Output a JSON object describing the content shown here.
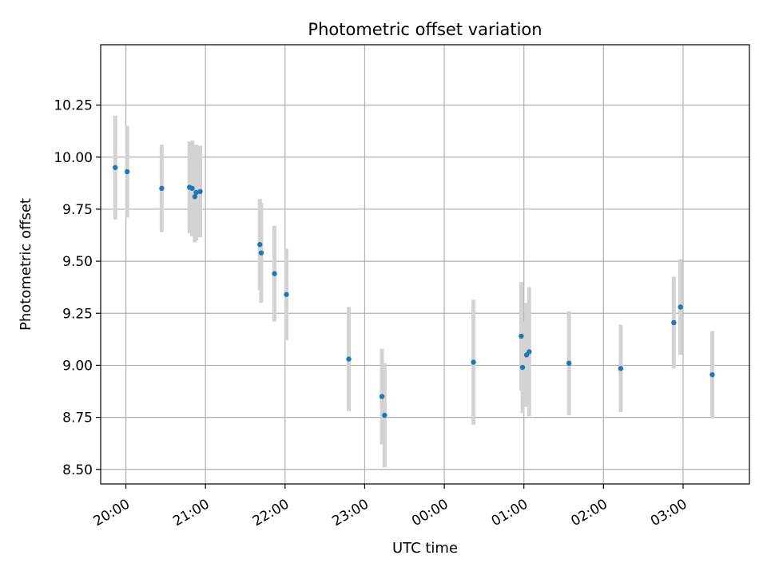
{
  "chart_data": {
    "type": "scatter",
    "title": "Photometric offset variation",
    "xlabel": "UTC time",
    "ylabel": "Photometric offset",
    "grid": true,
    "x_tick_labels": [
      "20:00",
      "21:00",
      "22:00",
      "23:00",
      "00:00",
      "01:00",
      "02:00",
      "03:00"
    ],
    "y_tick_labels": [
      "8.50",
      "8.75",
      "9.00",
      "9.25",
      "9.50",
      "9.75",
      "10.00",
      "10.25"
    ],
    "y_ticks": [
      8.5,
      8.75,
      9.0,
      9.25,
      9.5,
      9.75,
      10.0,
      10.25
    ],
    "ylim": [
      8.43,
      10.54
    ],
    "xlim": [
      "19:41",
      "03:50"
    ],
    "marker_color": "#1f77b4",
    "errorbar_color": "#d3d3d3",
    "points": [
      {
        "t": "19:52",
        "y": 9.95,
        "err": 0.25
      },
      {
        "t": "20:01",
        "y": 9.93,
        "err": 0.22
      },
      {
        "t": "20:27",
        "y": 9.85,
        "err": 0.21
      },
      {
        "t": "20:48",
        "y": 9.855,
        "err": 0.22
      },
      {
        "t": "20:50",
        "y": 9.85,
        "err": 0.23
      },
      {
        "t": "20:52",
        "y": 9.81,
        "err": 0.22
      },
      {
        "t": "20:53",
        "y": 9.83,
        "err": 0.23
      },
      {
        "t": "20:56",
        "y": 9.835,
        "err": 0.22
      },
      {
        "t": "21:41",
        "y": 9.58,
        "err": 0.22
      },
      {
        "t": "21:42",
        "y": 9.54,
        "err": 0.24
      },
      {
        "t": "21:52",
        "y": 9.44,
        "err": 0.23
      },
      {
        "t": "22:01",
        "y": 9.34,
        "err": 0.22
      },
      {
        "t": "22:48",
        "y": 9.03,
        "err": 0.25
      },
      {
        "t": "23:13",
        "y": 8.85,
        "err": 0.23
      },
      {
        "t": "23:15",
        "y": 8.76,
        "err": 0.25
      },
      {
        "t": "00:22",
        "y": 9.015,
        "err": 0.3
      },
      {
        "t": "00:58",
        "y": 9.14,
        "err": 0.26
      },
      {
        "t": "00:59",
        "y": 8.99,
        "err": 0.22
      },
      {
        "t": "01:02",
        "y": 9.05,
        "err": 0.25
      },
      {
        "t": "01:04",
        "y": 9.065,
        "err": 0.31
      },
      {
        "t": "01:34",
        "y": 9.01,
        "err": 0.25
      },
      {
        "t": "02:13",
        "y": 8.985,
        "err": 0.21
      },
      {
        "t": "02:53",
        "y": 9.205,
        "err": 0.22
      },
      {
        "t": "02:58",
        "y": 9.28,
        "err": 0.23
      },
      {
        "t": "03:22",
        "y": 8.955,
        "err": 0.21
      }
    ]
  }
}
